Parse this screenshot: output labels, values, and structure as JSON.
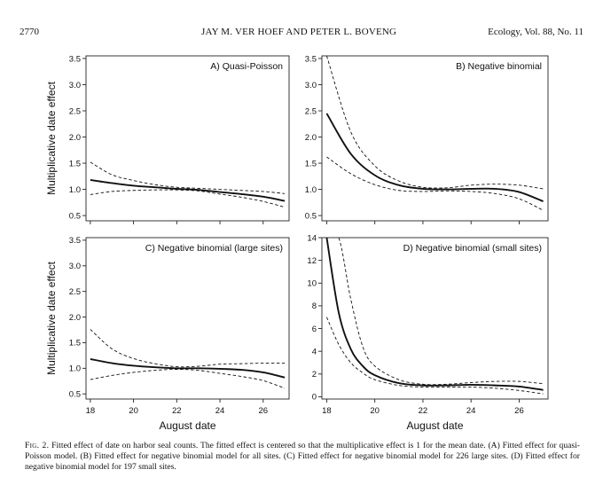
{
  "header": {
    "page_number": "2770",
    "running_title": "JAY M. VER HOEF AND PETER L. BOVENG",
    "journal": "Ecology, Vol. 88, No. 11"
  },
  "caption": {
    "label": "Fig. 2.",
    "text": "Fitted effect of date on harbor seal counts. The fitted effect is centered so that the multiplicative effect is 1 for the mean date. (A) Fitted effect for quasi-Poisson model. (B) Fitted effect for negative binomial model for all sites. (C) Fitted effect for negative binomial model for 226 large sites. (D) Fitted effect for negative binomial model for 197 small sites."
  },
  "chart_data": [
    {
      "type": "line",
      "title": "A) Quasi-Poisson",
      "ylabel": "Multiplicative date effect",
      "xlabel": "",
      "xlim": [
        17.8,
        27.2
      ],
      "ylim": [
        0.4,
        3.55
      ],
      "xticks": [
        18,
        20,
        22,
        24,
        26
      ],
      "show_xticklabels": false,
      "yticks": [
        0.5,
        1.0,
        1.5,
        2.0,
        2.5,
        3.0,
        3.5
      ],
      "yticklabels": [
        "0.5",
        "1.0",
        "1.5",
        "2.0",
        "2.5",
        "3.0",
        "3.5"
      ],
      "x": [
        18,
        19,
        20,
        21,
        22,
        23,
        24,
        25,
        26,
        27
      ],
      "series": [
        {
          "role": "fit",
          "values": [
            1.18,
            1.12,
            1.07,
            1.04,
            1.01,
            0.99,
            0.95,
            0.91,
            0.86,
            0.78
          ]
        },
        {
          "role": "upper",
          "values": [
            1.52,
            1.28,
            1.17,
            1.09,
            1.04,
            1.02,
            1.0,
            0.98,
            0.96,
            0.92
          ]
        },
        {
          "role": "lower",
          "values": [
            0.9,
            0.96,
            0.98,
            0.99,
            0.99,
            0.97,
            0.91,
            0.85,
            0.77,
            0.66
          ]
        }
      ]
    },
    {
      "type": "line",
      "title": "B) Negative binomial",
      "ylabel": "",
      "xlabel": "",
      "xlim": [
        17.8,
        27.2
      ],
      "ylim": [
        0.4,
        3.55
      ],
      "xticks": [
        18,
        20,
        22,
        24,
        26
      ],
      "show_xticklabels": false,
      "yticks": [
        0.5,
        1.0,
        1.5,
        2.0,
        2.5,
        3.0,
        3.5
      ],
      "yticklabels": [
        "0.5",
        "1.0",
        "1.5",
        "2.0",
        "2.5",
        "3.0",
        "3.5"
      ],
      "x": [
        18,
        19,
        20,
        21,
        22,
        23,
        24,
        25,
        26,
        27
      ],
      "series": [
        {
          "role": "fit",
          "values": [
            2.45,
            1.68,
            1.27,
            1.08,
            1.01,
            1.0,
            1.01,
            1.01,
            0.95,
            0.77
          ]
        },
        {
          "role": "upper",
          "values": [
            3.55,
            2.1,
            1.45,
            1.16,
            1.04,
            1.03,
            1.08,
            1.1,
            1.08,
            1.01
          ]
        },
        {
          "role": "lower",
          "values": [
            1.62,
            1.3,
            1.09,
            0.98,
            0.96,
            0.97,
            0.96,
            0.92,
            0.82,
            0.6
          ]
        }
      ]
    },
    {
      "type": "line",
      "title": "C) Negative binomial (large sites)",
      "ylabel": "Multiplicative date effect",
      "xlabel": "August date",
      "xlim": [
        17.8,
        27.2
      ],
      "ylim": [
        0.4,
        3.55
      ],
      "xticks": [
        18,
        20,
        22,
        24,
        26
      ],
      "show_xticklabels": true,
      "xticklabels": [
        "18",
        "20",
        "22",
        "24",
        "26"
      ],
      "yticks": [
        0.5,
        1.0,
        1.5,
        2.0,
        2.5,
        3.0,
        3.5
      ],
      "yticklabels": [
        "0.5",
        "1.0",
        "1.5",
        "2.0",
        "2.5",
        "3.0",
        "3.5"
      ],
      "x": [
        18,
        19,
        20,
        21,
        22,
        23,
        24,
        25,
        26,
        27
      ],
      "series": [
        {
          "role": "fit",
          "values": [
            1.18,
            1.1,
            1.05,
            1.02,
            1.0,
            1.0,
            0.99,
            0.97,
            0.92,
            0.82
          ]
        },
        {
          "role": "upper",
          "values": [
            1.76,
            1.38,
            1.19,
            1.09,
            1.03,
            1.04,
            1.08,
            1.09,
            1.1,
            1.1
          ]
        },
        {
          "role": "lower",
          "values": [
            0.78,
            0.86,
            0.92,
            0.96,
            0.98,
            0.96,
            0.9,
            0.84,
            0.76,
            0.61
          ]
        }
      ]
    },
    {
      "type": "line",
      "title": "D) Negative binomial (small sites)",
      "ylabel": "",
      "xlabel": "August date",
      "xlim": [
        17.8,
        27.2
      ],
      "ylim": [
        -0.2,
        14
      ],
      "xticks": [
        18,
        20,
        22,
        24,
        26
      ],
      "show_xticklabels": true,
      "xticklabels": [
        "18",
        "20",
        "22",
        "24",
        "26"
      ],
      "yticks": [
        0,
        2,
        4,
        6,
        8,
        10,
        12,
        14
      ],
      "yticklabels": [
        "0",
        "2",
        "4",
        "6",
        "8",
        "10",
        "12",
        "14"
      ],
      "x": [
        18,
        18.5,
        19,
        19.5,
        20,
        21,
        22,
        23,
        24,
        25,
        26,
        27
      ],
      "series": [
        {
          "role": "fit",
          "values": [
            14,
            7.4,
            4.2,
            2.7,
            1.9,
            1.2,
            1.0,
            1.0,
            1.05,
            1.0,
            0.9,
            0.6
          ]
        },
        {
          "role": "upper",
          "values": [
            14,
            14,
            8.6,
            4.4,
            2.7,
            1.5,
            1.1,
            1.1,
            1.25,
            1.35,
            1.35,
            1.15
          ]
        },
        {
          "role": "lower",
          "values": [
            7.0,
            4.6,
            3.0,
            2.1,
            1.5,
            1.0,
            0.85,
            0.85,
            0.85,
            0.75,
            0.55,
            0.25
          ]
        }
      ]
    }
  ]
}
